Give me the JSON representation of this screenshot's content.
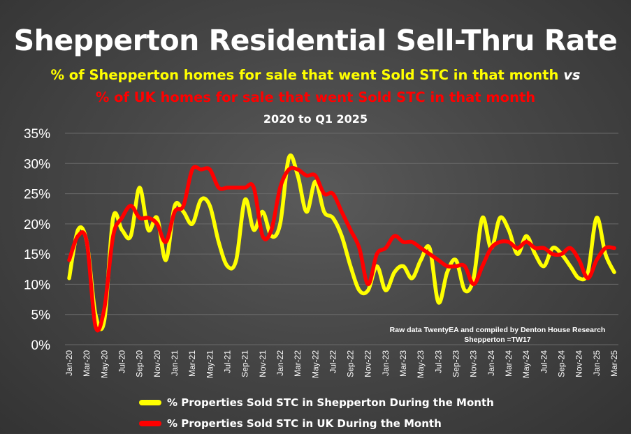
{
  "title": "Shepperton Residential Sell-Thru Rate",
  "subtitle_line1": "% of Shepperton homes for sale that went Sold STC in that month",
  "subtitle_vs": "vs",
  "subtitle_line2": "% of UK homes for sale that went Sold STC in that month",
  "subtitle_line3": "2020 to Q1 2025",
  "annotation_line1": "Raw data TwentyEA and compiled by Denton House Research",
  "annotation_line2": "Shepperton  =TW17",
  "colors": {
    "shepperton": "#FFFF00",
    "uk": "#FF0000",
    "text": "#FFFFFF",
    "grid": "#6a6a6a"
  },
  "chart_data": {
    "type": "line",
    "x_tick_labels": [
      "Jan-20",
      "Mar-20",
      "May-20",
      "Jul-20",
      "Sep-20",
      "Nov-20",
      "Jan-21",
      "Mar-21",
      "May-21",
      "Jul-21",
      "Sep-21",
      "Nov-21",
      "Jan-22",
      "Mar-22",
      "May-22",
      "Jul-22",
      "Sep-22",
      "Nov-22",
      "Jan-23",
      "Mar-23",
      "May-23",
      "Jul-23",
      "Sep-23",
      "Nov-23",
      "Jan-24",
      "Mar-24",
      "May-24",
      "Jul-24",
      "Sep-24",
      "Nov-24",
      "Jan-25",
      "Mar-25"
    ],
    "y_tick_labels": [
      "0%",
      "5%",
      "10%",
      "15%",
      "20%",
      "25%",
      "30%",
      "35%"
    ],
    "ylim": [
      0,
      35
    ],
    "grid": true,
    "legend_position": "bottom",
    "series": [
      {
        "name": "% Properties Sold STC in Shepperton During the Month",
        "color": "#FFFF00",
        "values": [
          11,
          19,
          17,
          5,
          4,
          21,
          19,
          18,
          26,
          19,
          21,
          14,
          23,
          22,
          20,
          24,
          23,
          17,
          13,
          14,
          24,
          19,
          22,
          18,
          20,
          31,
          28,
          22,
          27,
          22,
          21,
          18,
          13,
          9,
          9,
          13,
          9,
          12,
          13,
          11,
          14,
          16,
          7,
          12,
          14,
          9,
          11,
          21,
          16,
          21,
          19,
          15,
          18,
          15,
          13,
          16,
          15,
          13,
          11,
          12,
          21,
          15,
          12
        ],
        "note": "monthly Jan-20 .. Mar-25 (63 months)"
      },
      {
        "name": "% Properties Sold STC in UK During the Month",
        "color": "#FF0000",
        "values": [
          14,
          18,
          17,
          3,
          6,
          18,
          21,
          23,
          21,
          21,
          20,
          17,
          22,
          23,
          29,
          29,
          29,
          26,
          26,
          26,
          26,
          26,
          18,
          19,
          26,
          29,
          29,
          28,
          28,
          25,
          25,
          22,
          19,
          16,
          10,
          15,
          16,
          18,
          17,
          17,
          16,
          15,
          14,
          13,
          13,
          13,
          10,
          13,
          16,
          17,
          17,
          16,
          17,
          16,
          16,
          15,
          15,
          16,
          14,
          11,
          14,
          16,
          16
        ]
      }
    ]
  }
}
